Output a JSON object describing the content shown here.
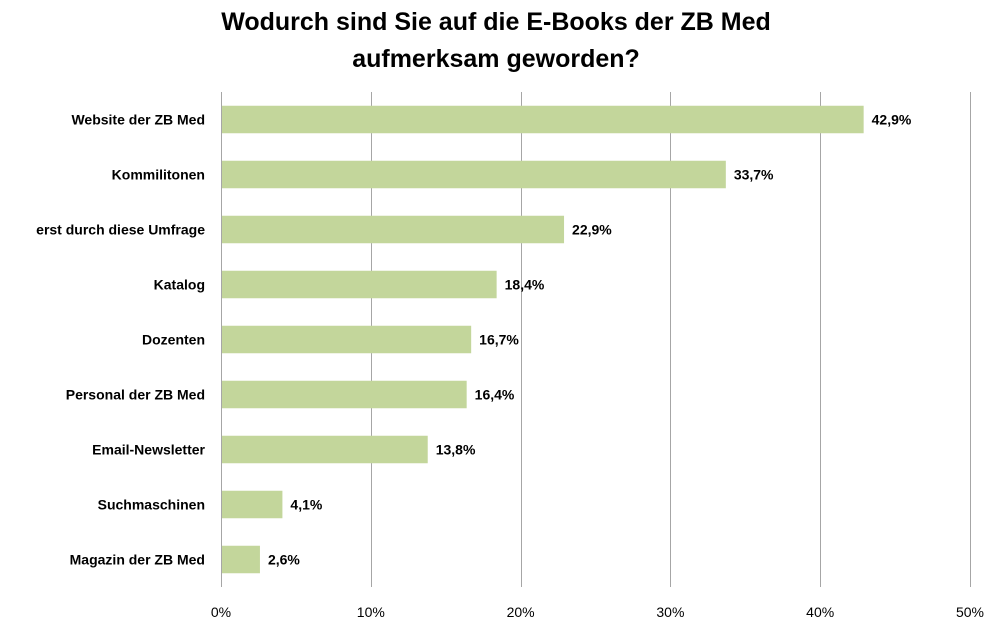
{
  "chart_data": {
    "type": "bar",
    "orientation": "horizontal",
    "title_lines": [
      "Wodurch sind Sie auf die E-Books der ZB Med",
      "aufmerksam geworden?"
    ],
    "categories": [
      "Website der ZB Med",
      "Kommilitonen",
      "erst durch diese Umfrage",
      "Katalog",
      "Dozenten",
      "Personal der ZB Med",
      "Email-Newsletter",
      "Suchmaschinen",
      "Magazin der ZB Med"
    ],
    "values": [
      42.9,
      33.7,
      22.9,
      18.4,
      16.7,
      16.4,
      13.8,
      4.1,
      2.6
    ],
    "value_labels": [
      "42,9%",
      "33,7%",
      "22,9%",
      "18,4%",
      "16,7%",
      "16,4%",
      "13,8%",
      "4,1%",
      "2,6%"
    ],
    "xlim": [
      0,
      50
    ],
    "ticks": [
      0,
      10,
      20,
      30,
      40,
      50
    ],
    "tick_labels": [
      "0%",
      "10%",
      "20%",
      "30%",
      "40%",
      "50%"
    ],
    "grid": true,
    "bar_color": "#c3d69b",
    "grid_color": "#a6a6a6"
  }
}
